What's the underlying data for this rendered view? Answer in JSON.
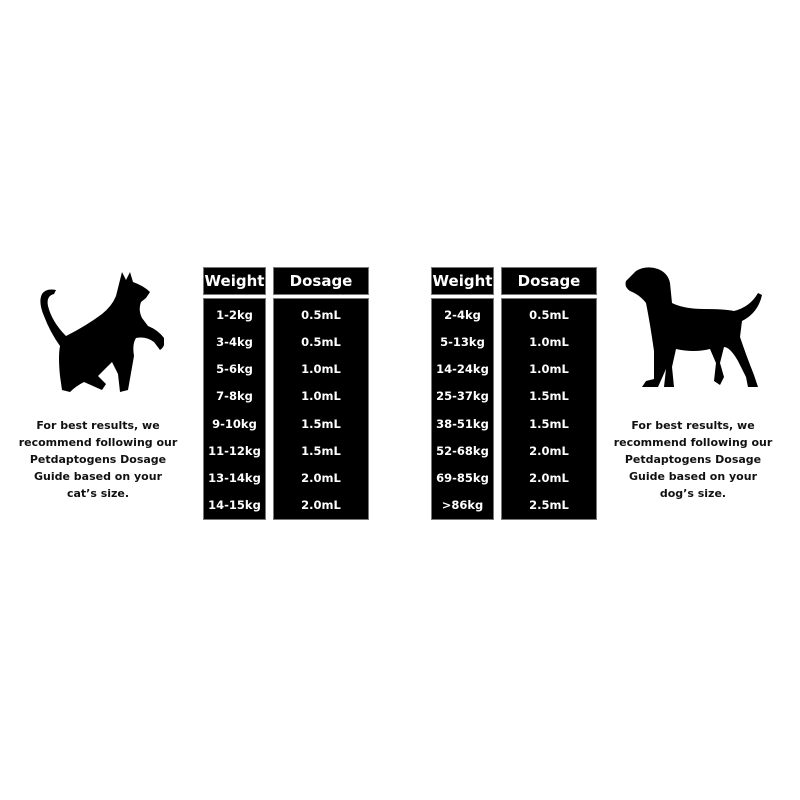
{
  "cat": {
    "note": "For best results, we recommend following our Petdaptogens Dosage Guide based on your cat’s size.",
    "table": {
      "headers": [
        "Weight",
        "Dosage"
      ],
      "weights": [
        "1-2kg",
        "3-4kg",
        "5-6kg",
        "7-8kg",
        "9-10kg",
        "11-12kg",
        "13-14kg",
        "14-15kg"
      ],
      "dosages": [
        "0.5mL",
        "0.5mL",
        "1.0mL",
        "1.0mL",
        "1.5mL",
        "1.5mL",
        "2.0mL",
        "2.0mL"
      ]
    }
  },
  "dog": {
    "note": "For best results, we recommend following our Petdaptogens Dosage Guide based on your dog’s size.",
    "table": {
      "headers": [
        "Weight",
        "Dosage"
      ],
      "weights": [
        "2-4kg",
        "5-13kg",
        "14-24kg",
        "25-37kg",
        "38-51kg",
        "52-68kg",
        "69-85kg",
        ">86kg"
      ],
      "dosages": [
        "0.5mL",
        "1.0mL",
        "1.0mL",
        "1.5mL",
        "1.5mL",
        "2.0mL",
        "2.0mL",
        "2.5mL"
      ]
    }
  },
  "icons": [
    "cat-silhouette-icon",
    "dog-silhouette-icon"
  ],
  "colors": {
    "table_bg": "#000000",
    "table_text": "#ffffff",
    "page_bg": "#ffffff"
  }
}
